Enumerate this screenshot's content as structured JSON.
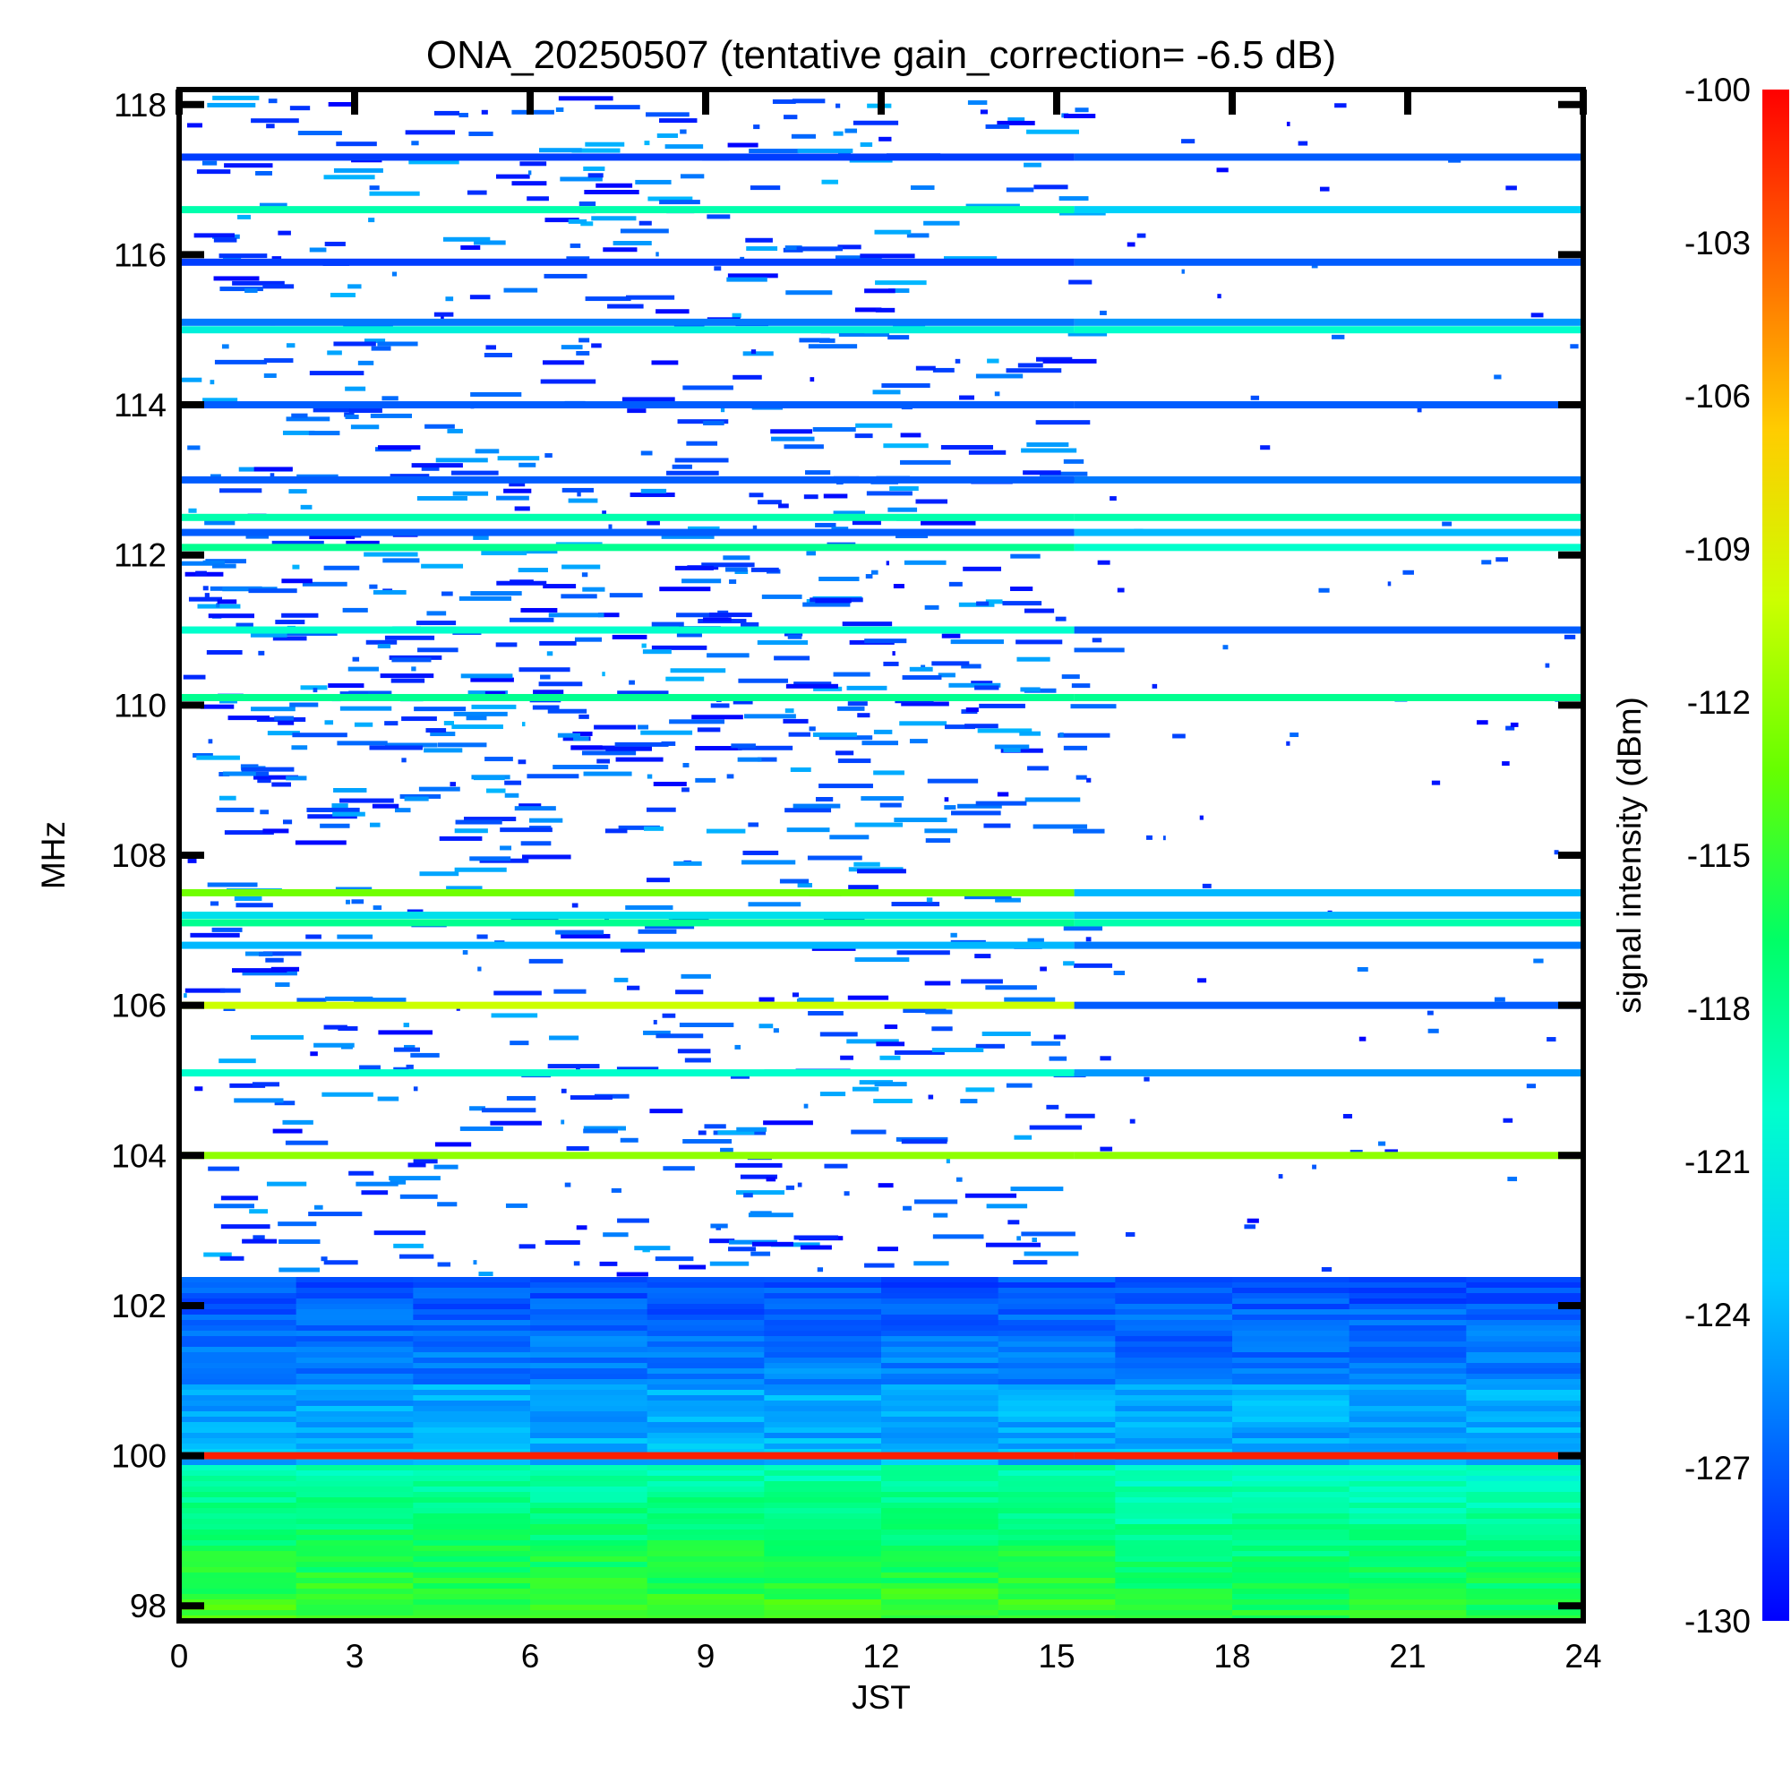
{
  "chart_data": {
    "type": "heatmap",
    "title": "ONA_20250507 (tentative gain_correction= -6.5 dB)",
    "xlabel": "JST",
    "ylabel": "MHz",
    "colorbar_label": "signal intensity (dBm)",
    "xlim": [
      0,
      24
    ],
    "ylim": [
      97.8,
      118.2
    ],
    "x_ticks": [
      0,
      3,
      6,
      9,
      12,
      15,
      18,
      21,
      24
    ],
    "y_ticks": [
      98,
      100,
      102,
      104,
      106,
      108,
      110,
      112,
      114,
      116,
      118
    ],
    "color_range": [
      -130,
      -100
    ],
    "colorbar_ticks": [
      -100,
      -103,
      -106,
      -109,
      -112,
      -115,
      -118,
      -121,
      -124,
      -127,
      -130
    ],
    "colormap": [
      "#0000ff",
      "#0066ff",
      "#00ccff",
      "#00ffcc",
      "#00ff66",
      "#66ff00",
      "#ccff00",
      "#ffcc00",
      "#ff6600",
      "#ff0000"
    ],
    "regime_change_jst": 15.3,
    "bands": [
      {
        "freq": 117.3,
        "day": -128,
        "night": -127
      },
      {
        "freq": 116.6,
        "day": -119,
        "night": -123
      },
      {
        "freq": 115.9,
        "day": -128,
        "night": -127
      },
      {
        "freq": 115.1,
        "day": -126,
        "night": -125
      },
      {
        "freq": 115.0,
        "day": -121,
        "night": -120
      },
      {
        "freq": 114.0,
        "day": -127,
        "night": -127
      },
      {
        "freq": 113.0,
        "day": -127,
        "night": -126
      },
      {
        "freq": 112.5,
        "day": -119,
        "night": -119
      },
      {
        "freq": 112.3,
        "day": -127,
        "night": -124
      },
      {
        "freq": 112.1,
        "day": -118,
        "night": -120
      },
      {
        "freq": 111.0,
        "day": -120,
        "night": -127
      },
      {
        "freq": 110.1,
        "day": -118,
        "night": -118
      },
      {
        "freq": 107.5,
        "day": -113,
        "night": -124
      },
      {
        "freq": 107.2,
        "day": -122,
        "night": -124
      },
      {
        "freq": 107.1,
        "day": -118,
        "night": -119
      },
      {
        "freq": 106.8,
        "day": -124,
        "night": -126
      },
      {
        "freq": 106.0,
        "day": -110,
        "night": -127
      },
      {
        "freq": 105.1,
        "day": -120,
        "night": -125
      },
      {
        "freq": 104.0,
        "day": -112,
        "night": -112
      },
      {
        "freq": 100.0,
        "day": -101,
        "night": -101
      }
    ]
  }
}
